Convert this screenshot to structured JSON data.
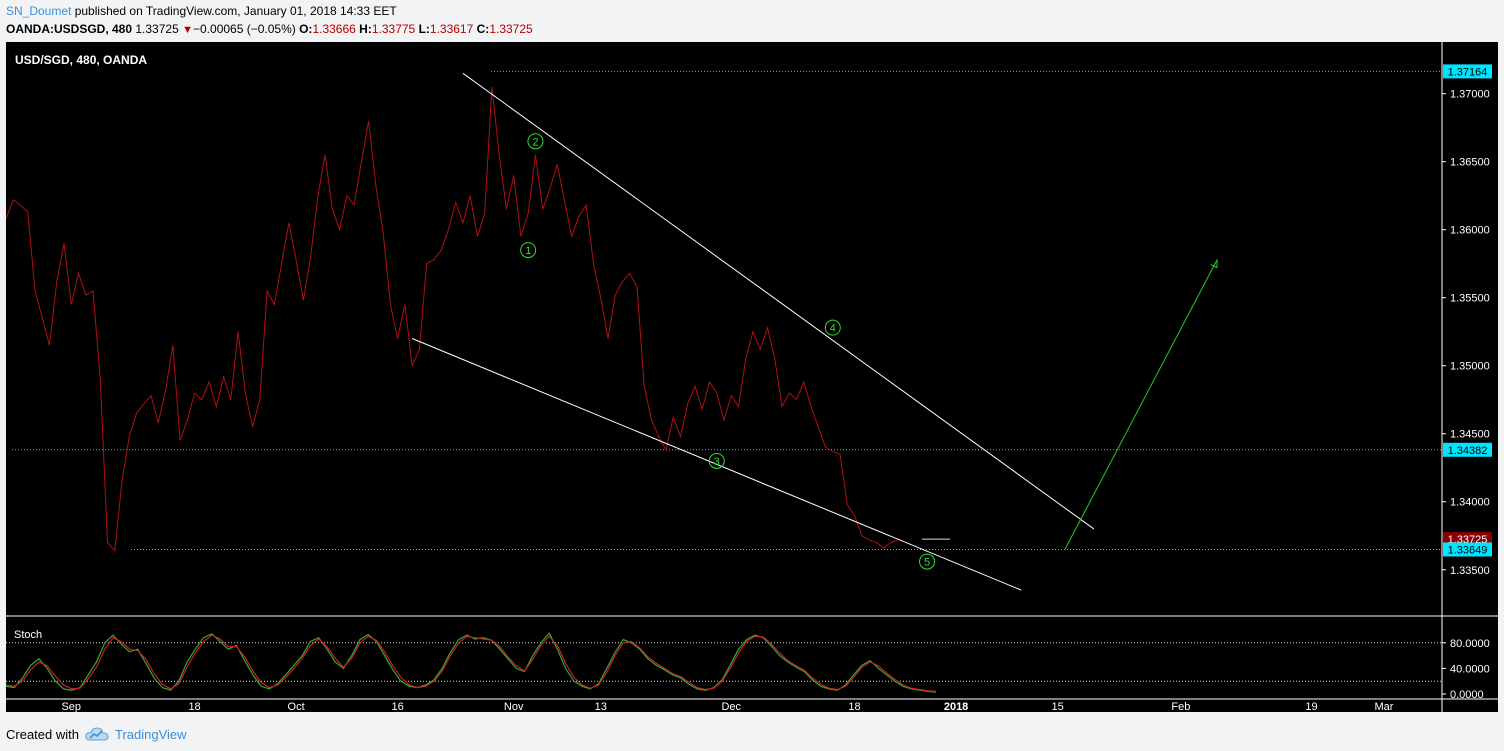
{
  "header": {
    "author": "SN_Doumet",
    "published": " published on TradingView.com, January 01, 2018 14:33 EET",
    "symbol": "OANDA:USDSGD, 480",
    "last": "1.33725",
    "change": "−0.00065 (−0.05%)",
    "o_label": "O:",
    "o_value": "1.33666",
    "h_label": "H:",
    "h_value": "1.33775",
    "l_label": "L:",
    "l_value": "1.33617",
    "c_label": "C:",
    "c_value": "1.33725"
  },
  "footer": {
    "created_with": "Created with",
    "brand": "TradingView"
  },
  "colors": {
    "price_line": "#b01010",
    "stoch_k": "#33aa33",
    "stoch_d": "#cc2020",
    "trendline": "#ffffff",
    "projection": "#22cc22",
    "hline": "#39c6d9",
    "price_tag": "#8b0000",
    "level_tag": "#00e5ff",
    "wave_label": "#33dd33"
  },
  "chart_data": [
    {
      "type": "line",
      "title": "USD/SGD, 480, OANDA",
      "y_ticks": [
        "1.37000",
        "1.36500",
        "1.36000",
        "1.35500",
        "1.35000",
        "1.34500",
        "1.34000",
        "1.33500"
      ],
      "ylim": [
        1.3316,
        1.3738
      ],
      "x_ticks": [
        "Sep",
        "18",
        "Oct",
        "16",
        "Nov",
        "13",
        "Dec",
        "18",
        "2018",
        "15",
        "Feb",
        "19",
        "Mar"
      ],
      "x_domain": [
        "2017-08-23",
        "2018-03-09"
      ],
      "grid": false,
      "series": [
        {
          "name": "",
          "points": [
            [
              "2017-08-23",
              1.3608
            ],
            [
              "2017-08-24",
              1.3622
            ],
            [
              "2017-08-25",
              1.3618
            ],
            [
              "2017-08-26",
              1.3613
            ],
            [
              "2017-08-27",
              1.3555
            ],
            [
              "2017-08-28",
              1.3535
            ],
            [
              "2017-08-29",
              1.3515
            ],
            [
              "2017-08-30",
              1.3562
            ],
            [
              "2017-08-31",
              1.359
            ],
            [
              "2017-09-01",
              1.3545
            ],
            [
              "2017-09-02",
              1.3568
            ],
            [
              "2017-09-03",
              1.3552
            ],
            [
              "2017-09-04",
              1.3555
            ],
            [
              "2017-09-05",
              1.349
            ],
            [
              "2017-09-06",
              1.337
            ],
            [
              "2017-09-07",
              1.3364
            ],
            [
              "2017-09-08",
              1.3415
            ],
            [
              "2017-09-09",
              1.3448
            ],
            [
              "2017-09-10",
              1.3465
            ],
            [
              "2017-09-11",
              1.3472
            ],
            [
              "2017-09-12",
              1.3478
            ],
            [
              "2017-09-13",
              1.3458
            ],
            [
              "2017-09-14",
              1.3482
            ],
            [
              "2017-09-15",
              1.3515
            ],
            [
              "2017-09-16",
              1.3445
            ],
            [
              "2017-09-17",
              1.346
            ],
            [
              "2017-09-18",
              1.348
            ],
            [
              "2017-09-19",
              1.3475
            ],
            [
              "2017-09-20",
              1.3488
            ],
            [
              "2017-09-21",
              1.347
            ],
            [
              "2017-09-22",
              1.3492
            ],
            [
              "2017-09-23",
              1.3475
            ],
            [
              "2017-09-24",
              1.3525
            ],
            [
              "2017-09-25",
              1.348
            ],
            [
              "2017-09-26",
              1.3455
            ],
            [
              "2017-09-27",
              1.3475
            ],
            [
              "2017-09-28",
              1.3555
            ],
            [
              "2017-09-29",
              1.3545
            ],
            [
              "2017-09-30",
              1.3575
            ],
            [
              "2017-10-01",
              1.3605
            ],
            [
              "2017-10-02",
              1.3578
            ],
            [
              "2017-10-03",
              1.3548
            ],
            [
              "2017-10-04",
              1.358
            ],
            [
              "2017-10-05",
              1.3625
            ],
            [
              "2017-10-06",
              1.3655
            ],
            [
              "2017-10-07",
              1.3615
            ],
            [
              "2017-10-08",
              1.36
            ],
            [
              "2017-10-09",
              1.3625
            ],
            [
              "2017-10-10",
              1.3618
            ],
            [
              "2017-10-11",
              1.365
            ],
            [
              "2017-10-12",
              1.368
            ],
            [
              "2017-10-13",
              1.3632
            ],
            [
              "2017-10-14",
              1.3598
            ],
            [
              "2017-10-15",
              1.3545
            ],
            [
              "2017-10-16",
              1.352
            ],
            [
              "2017-10-17",
              1.3545
            ],
            [
              "2017-10-18",
              1.35
            ],
            [
              "2017-10-19",
              1.3512
            ],
            [
              "2017-10-20",
              1.3575
            ],
            [
              "2017-10-21",
              1.3578
            ],
            [
              "2017-10-22",
              1.3585
            ],
            [
              "2017-10-23",
              1.36
            ],
            [
              "2017-10-24",
              1.362
            ],
            [
              "2017-10-25",
              1.3605
            ],
            [
              "2017-10-26",
              1.3625
            ],
            [
              "2017-10-27",
              1.3595
            ],
            [
              "2017-10-28",
              1.3612
            ],
            [
              "2017-10-29",
              1.3705
            ],
            [
              "2017-10-30",
              1.3655
            ],
            [
              "2017-10-31",
              1.3615
            ],
            [
              "2017-11-01",
              1.364
            ],
            [
              "2017-11-02",
              1.3595
            ],
            [
              "2017-11-03",
              1.3612
            ],
            [
              "2017-11-04",
              1.3655
            ],
            [
              "2017-11-05",
              1.3615
            ],
            [
              "2017-11-06",
              1.363
            ],
            [
              "2017-11-07",
              1.3648
            ],
            [
              "2017-11-08",
              1.3622
            ],
            [
              "2017-11-09",
              1.3595
            ],
            [
              "2017-11-10",
              1.361
            ],
            [
              "2017-11-11",
              1.3618
            ],
            [
              "2017-11-12",
              1.3575
            ],
            [
              "2017-11-13",
              1.355
            ],
            [
              "2017-11-14",
              1.352
            ],
            [
              "2017-11-15",
              1.3552
            ],
            [
              "2017-11-16",
              1.3562
            ],
            [
              "2017-11-17",
              1.3568
            ],
            [
              "2017-11-18",
              1.3558
            ],
            [
              "2017-11-19",
              1.3485
            ],
            [
              "2017-11-20",
              1.346
            ],
            [
              "2017-11-21",
              1.3448
            ],
            [
              "2017-11-22",
              1.3438
            ],
            [
              "2017-11-23",
              1.3462
            ],
            [
              "2017-11-24",
              1.3448
            ],
            [
              "2017-11-25",
              1.3472
            ],
            [
              "2017-11-26",
              1.3485
            ],
            [
              "2017-11-27",
              1.3468
            ],
            [
              "2017-11-28",
              1.3488
            ],
            [
              "2017-11-29",
              1.348
            ],
            [
              "2017-11-30",
              1.346
            ],
            [
              "2017-12-01",
              1.3478
            ],
            [
              "2017-12-02",
              1.347
            ],
            [
              "2017-12-03",
              1.3505
            ],
            [
              "2017-12-04",
              1.3525
            ],
            [
              "2017-12-05",
              1.3512
            ],
            [
              "2017-12-06",
              1.3528
            ],
            [
              "2017-12-07",
              1.3505
            ],
            [
              "2017-12-08",
              1.347
            ],
            [
              "2017-12-09",
              1.348
            ],
            [
              "2017-12-10",
              1.3475
            ],
            [
              "2017-12-11",
              1.3488
            ],
            [
              "2017-12-12",
              1.347
            ],
            [
              "2017-12-13",
              1.3455
            ],
            [
              "2017-12-14",
              1.344
            ],
            [
              "2017-12-15",
              1.3437
            ],
            [
              "2017-12-16",
              1.3435
            ],
            [
              "2017-12-17",
              1.3398
            ],
            [
              "2017-12-18",
              1.339
            ],
            [
              "2017-12-19",
              1.3375
            ],
            [
              "2017-12-20",
              1.3372
            ],
            [
              "2017-12-21",
              1.337
            ],
            [
              "2017-12-22",
              1.3366
            ],
            [
              "2017-12-23",
              1.337
            ],
            [
              "2017-12-24",
              1.3372
            ]
          ]
        }
      ],
      "horizontal_levels": [
        1.37164,
        1.34382,
        1.33649
      ],
      "price_tags": [
        {
          "value": 1.37164,
          "label": "1.37164",
          "kind": "level"
        },
        {
          "value": 1.34382,
          "label": "1.34382",
          "kind": "level"
        },
        {
          "value": 1.33725,
          "label": "1.33725",
          "kind": "last"
        },
        {
          "value": 1.33649,
          "label": "1.33649",
          "kind": "level"
        }
      ],
      "trendlines": [
        {
          "from": [
            "2017-10-25",
            1.3715
          ],
          "to": [
            "2018-01-20",
            1.338
          ],
          "color": "trendline"
        },
        {
          "from": [
            "2017-10-18",
            1.352
          ],
          "to": [
            "2018-01-10",
            1.3335
          ],
          "color": "trendline"
        },
        {
          "from": [
            "2018-01-16",
            1.33649
          ],
          "to": [
            "2018-02-06",
            1.3578
          ],
          "color": "projection"
        }
      ],
      "wave_labels": [
        {
          "label": "1",
          "x": "2017-11-03",
          "y": 1.3585
        },
        {
          "label": "2",
          "x": "2017-11-04",
          "y": 1.3665
        },
        {
          "label": "3",
          "x": "2017-11-29",
          "y": 1.343
        },
        {
          "label": "4",
          "x": "2017-12-15",
          "y": 1.3528
        },
        {
          "label": "5",
          "x": "2017-12-28",
          "y": 1.3356
        }
      ]
    },
    {
      "type": "line",
      "title": "Stoch",
      "y_ticks": [
        "80.0000",
        "40.0000",
        "0.0000"
      ],
      "ylim": [
        0,
        100
      ],
      "levels": [
        80,
        20
      ],
      "series": [
        {
          "name": "",
          "color": "stoch_k",
          "values": [
            12,
            10,
            25,
            45,
            55,
            40,
            20,
            8,
            6,
            10,
            30,
            50,
            80,
            92,
            78,
            66,
            70,
            48,
            25,
            10,
            6,
            20,
            50,
            70,
            88,
            94,
            82,
            70,
            76,
            52,
            30,
            12,
            8,
            16,
            30,
            45,
            60,
            82,
            88,
            70,
            50,
            40,
            60,
            85,
            93,
            82,
            60,
            38,
            20,
            12,
            10,
            14,
            22,
            40,
            65,
            85,
            92,
            86,
            88,
            84,
            70,
            55,
            40,
            35,
            60,
            80,
            95,
            70,
            40,
            20,
            12,
            8,
            16,
            40,
            65,
            85,
            80,
            70,
            55,
            45,
            38,
            30,
            25,
            15,
            8,
            6,
            10,
            22,
            45,
            70,
            85,
            92,
            88,
            75,
            60,
            50,
            42,
            35,
            22,
            12,
            8,
            6,
            14,
            30,
            45,
            52,
            40,
            30,
            20,
            12,
            8,
            6,
            4,
            3
          ]
        },
        {
          "name": "",
          "color": "stoch_d",
          "values": [
            14,
            12,
            20,
            38,
            50,
            44,
            28,
            14,
            8,
            9,
            24,
            42,
            70,
            88,
            82,
            70,
            68,
            54,
            32,
            15,
            8,
            16,
            42,
            64,
            82,
            92,
            86,
            74,
            74,
            58,
            36,
            18,
            10,
            14,
            26,
            40,
            56,
            76,
            86,
            74,
            56,
            42,
            56,
            80,
            90,
            84,
            66,
            44,
            26,
            14,
            10,
            12,
            20,
            36,
            60,
            80,
            90,
            88,
            86,
            84,
            74,
            58,
            44,
            36,
            54,
            76,
            90,
            76,
            48,
            26,
            14,
            9,
            14,
            34,
            60,
            80,
            82,
            72,
            58,
            48,
            40,
            32,
            27,
            18,
            10,
            7,
            9,
            20,
            40,
            64,
            82,
            90,
            89,
            78,
            64,
            52,
            44,
            37,
            25,
            15,
            9,
            7,
            12,
            26,
            42,
            50,
            44,
            33,
            23,
            14,
            9,
            7,
            5,
            4
          ]
        }
      ]
    }
  ]
}
